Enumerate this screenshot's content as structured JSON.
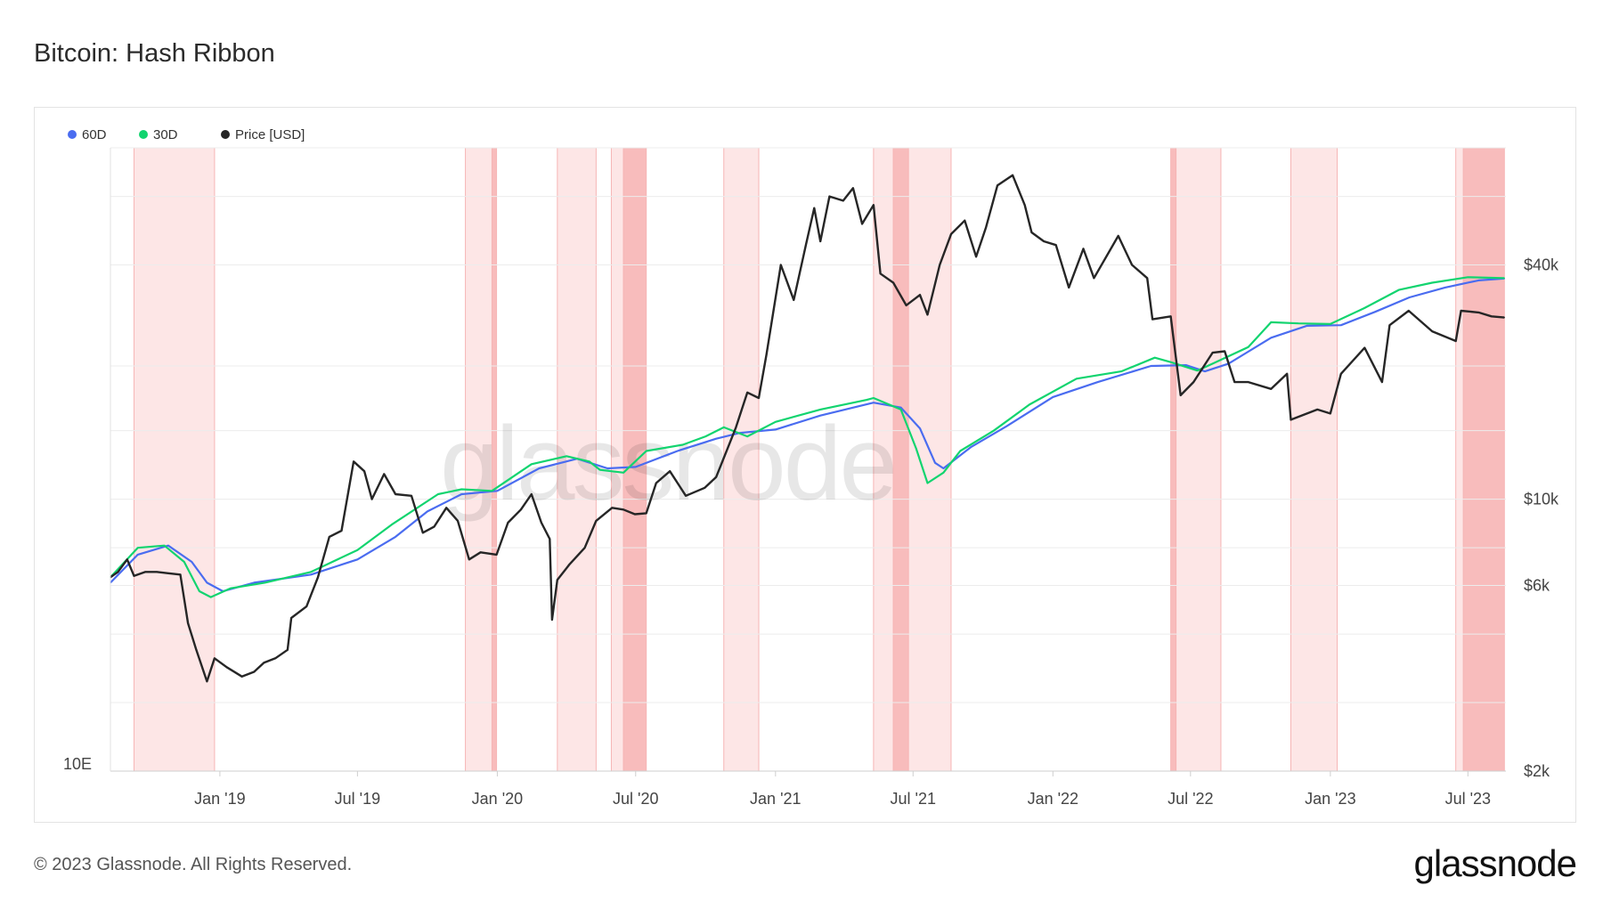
{
  "title": "Bitcoin: Hash Ribbon",
  "footer": "© 2023 Glassnode. All Rights Reserved.",
  "brand": "glassnode",
  "watermark": "glassnode",
  "colors": {
    "ma60": "#4a6cf0",
    "ma30": "#12d46f",
    "price": "#262626",
    "band_light": "#fde6e6",
    "band_dark": "#f8bcbc",
    "band_edge": "#f6b5b5",
    "grid": "#ececec"
  },
  "chart_data": {
    "type": "line",
    "title": "Bitcoin: Hash Ribbon",
    "legend": [
      {
        "name": "60D",
        "color": "#4a6cf0"
      },
      {
        "name": "30D",
        "color": "#12d46f"
      },
      {
        "name": "Price [USD]",
        "color": "#262626"
      }
    ],
    "legend_position": "top-left",
    "x_ticks": [
      "Jan '19",
      "Jul '19",
      "Jan '20",
      "Jul '20",
      "Jan '21",
      "Jul '21",
      "Jan '22",
      "Jul '22",
      "Jan '23",
      "Jul '23"
    ],
    "x_tick_dates": [
      "2019-01-01",
      "2019-07-01",
      "2020-01-01",
      "2020-07-01",
      "2021-01-01",
      "2021-07-01",
      "2022-01-01",
      "2022-07-01",
      "2023-01-01",
      "2023-07-01"
    ],
    "x_range": [
      "2018-08-10",
      "2023-08-20"
    ],
    "y_left": {
      "scale": "log",
      "tick_labels": [
        "10E"
      ],
      "tick_values": [
        10
      ]
    },
    "y_right": {
      "scale": "log",
      "range": [
        2000,
        80000
      ],
      "ticks": [
        2000,
        6000,
        10000,
        40000
      ],
      "tick_labels": [
        "$2k",
        "$6k",
        "$10k",
        "$40k"
      ]
    },
    "capitulation_bands": [
      {
        "start": "2018-09-10",
        "end": "2018-12-25",
        "intensity": "light"
      },
      {
        "start": "2019-11-20",
        "end": "2019-12-25",
        "intensity": "light"
      },
      {
        "start": "2019-12-25",
        "end": "2019-12-31",
        "intensity": "dark"
      },
      {
        "start": "2020-03-20",
        "end": "2020-05-10",
        "intensity": "light"
      },
      {
        "start": "2020-05-30",
        "end": "2020-06-15",
        "intensity": "light"
      },
      {
        "start": "2020-06-15",
        "end": "2020-07-15",
        "intensity": "dark"
      },
      {
        "start": "2020-10-25",
        "end": "2020-12-10",
        "intensity": "light"
      },
      {
        "start": "2021-05-10",
        "end": "2021-06-05",
        "intensity": "light"
      },
      {
        "start": "2021-06-05",
        "end": "2021-06-25",
        "intensity": "dark"
      },
      {
        "start": "2021-06-25",
        "end": "2021-08-20",
        "intensity": "light"
      },
      {
        "start": "2022-06-05",
        "end": "2022-06-12",
        "intensity": "dark"
      },
      {
        "start": "2022-06-12",
        "end": "2022-08-10",
        "intensity": "light"
      },
      {
        "start": "2022-11-10",
        "end": "2023-01-10",
        "intensity": "light"
      },
      {
        "start": "2023-06-15",
        "end": "2023-06-25",
        "intensity": "light"
      },
      {
        "start": "2023-06-25",
        "end": "2023-08-18",
        "intensity": "dark"
      }
    ],
    "series": [
      {
        "name": "Price [USD]",
        "axis": "right",
        "points": [
          [
            "2018-08-10",
            6300
          ],
          [
            "2018-08-20",
            6500
          ],
          [
            "2018-09-01",
            7000
          ],
          [
            "2018-09-10",
            6350
          ],
          [
            "2018-09-25",
            6500
          ],
          [
            "2018-10-10",
            6500
          ],
          [
            "2018-10-25",
            6450
          ],
          [
            "2018-11-10",
            6400
          ],
          [
            "2018-11-20",
            4800
          ],
          [
            "2018-12-01",
            4100
          ],
          [
            "2018-12-15",
            3400
          ],
          [
            "2018-12-25",
            3900
          ],
          [
            "2019-01-10",
            3700
          ],
          [
            "2019-01-30",
            3500
          ],
          [
            "2019-02-15",
            3600
          ],
          [
            "2019-02-28",
            3800
          ],
          [
            "2019-03-15",
            3900
          ],
          [
            "2019-03-31",
            4100
          ],
          [
            "2019-04-05",
            4950
          ],
          [
            "2019-04-25",
            5300
          ],
          [
            "2019-05-10",
            6300
          ],
          [
            "2019-05-25",
            8000
          ],
          [
            "2019-06-10",
            8300
          ],
          [
            "2019-06-26",
            12500
          ],
          [
            "2019-07-10",
            11800
          ],
          [
            "2019-07-20",
            10000
          ],
          [
            "2019-08-05",
            11600
          ],
          [
            "2019-08-20",
            10300
          ],
          [
            "2019-09-10",
            10200
          ],
          [
            "2019-09-25",
            8200
          ],
          [
            "2019-10-10",
            8500
          ],
          [
            "2019-10-26",
            9500
          ],
          [
            "2019-11-10",
            8800
          ],
          [
            "2019-11-25",
            7000
          ],
          [
            "2019-12-10",
            7300
          ],
          [
            "2019-12-31",
            7200
          ],
          [
            "2020-01-15",
            8700
          ],
          [
            "2020-02-01",
            9400
          ],
          [
            "2020-02-15",
            10300
          ],
          [
            "2020-02-28",
            8700
          ],
          [
            "2020-03-10",
            7900
          ],
          [
            "2020-03-13",
            4900
          ],
          [
            "2020-03-20",
            6200
          ],
          [
            "2020-04-05",
            6800
          ],
          [
            "2020-04-25",
            7500
          ],
          [
            "2020-05-10",
            8800
          ],
          [
            "2020-05-31",
            9500
          ],
          [
            "2020-06-15",
            9400
          ],
          [
            "2020-06-30",
            9150
          ],
          [
            "2020-07-15",
            9200
          ],
          [
            "2020-07-28",
            11000
          ],
          [
            "2020-08-15",
            11800
          ],
          [
            "2020-09-05",
            10200
          ],
          [
            "2020-09-30",
            10700
          ],
          [
            "2020-10-15",
            11400
          ],
          [
            "2020-10-28",
            13200
          ],
          [
            "2020-11-10",
            15300
          ],
          [
            "2020-11-25",
            18800
          ],
          [
            "2020-12-10",
            18200
          ],
          [
            "2020-12-20",
            23500
          ],
          [
            "2021-01-08",
            40000
          ],
          [
            "2021-01-25",
            32500
          ],
          [
            "2021-02-10",
            45000
          ],
          [
            "2021-02-21",
            56000
          ],
          [
            "2021-03-01",
            46000
          ],
          [
            "2021-03-13",
            60000
          ],
          [
            "2021-03-31",
            58500
          ],
          [
            "2021-04-13",
            63000
          ],
          [
            "2021-04-25",
            51000
          ],
          [
            "2021-05-10",
            57000
          ],
          [
            "2021-05-19",
            38000
          ],
          [
            "2021-06-05",
            36000
          ],
          [
            "2021-06-22",
            31500
          ],
          [
            "2021-07-10",
            33500
          ],
          [
            "2021-07-20",
            29800
          ],
          [
            "2021-08-05",
            40000
          ],
          [
            "2021-08-20",
            48000
          ],
          [
            "2021-09-07",
            52000
          ],
          [
            "2021-09-22",
            42000
          ],
          [
            "2021-10-05",
            50000
          ],
          [
            "2021-10-20",
            64000
          ],
          [
            "2021-11-09",
            68000
          ],
          [
            "2021-11-25",
            57000
          ],
          [
            "2021-12-04",
            48500
          ],
          [
            "2021-12-20",
            46000
          ],
          [
            "2022-01-05",
            45000
          ],
          [
            "2022-01-22",
            35000
          ],
          [
            "2022-02-10",
            44000
          ],
          [
            "2022-02-24",
            37000
          ],
          [
            "2022-03-28",
            47500
          ],
          [
            "2022-04-15",
            40000
          ],
          [
            "2022-05-05",
            37000
          ],
          [
            "2022-05-12",
            29000
          ],
          [
            "2022-06-05",
            29500
          ],
          [
            "2022-06-18",
            18500
          ],
          [
            "2022-07-05",
            20000
          ],
          [
            "2022-07-30",
            23800
          ],
          [
            "2022-08-15",
            24000
          ],
          [
            "2022-08-28",
            20000
          ],
          [
            "2022-09-15",
            20000
          ],
          [
            "2022-10-15",
            19200
          ],
          [
            "2022-11-05",
            21000
          ],
          [
            "2022-11-10",
            16000
          ],
          [
            "2022-12-15",
            17000
          ],
          [
            "2023-01-01",
            16600
          ],
          [
            "2023-01-15",
            21000
          ],
          [
            "2023-02-15",
            24500
          ],
          [
            "2023-03-10",
            20000
          ],
          [
            "2023-03-20",
            28000
          ],
          [
            "2023-04-14",
            30500
          ],
          [
            "2023-05-15",
            27000
          ],
          [
            "2023-06-15",
            25500
          ],
          [
            "2023-06-22",
            30500
          ],
          [
            "2023-07-15",
            30200
          ],
          [
            "2023-08-01",
            29500
          ],
          [
            "2023-08-18",
            29300
          ]
        ]
      },
      {
        "name": "30D",
        "axis": "left",
        "points": [
          [
            "2018-08-10",
            6300
          ],
          [
            "2018-09-15",
            7500
          ],
          [
            "2018-10-20",
            7600
          ],
          [
            "2018-11-15",
            6900
          ],
          [
            "2018-12-05",
            5800
          ],
          [
            "2018-12-20",
            5600
          ],
          [
            "2019-01-15",
            5900
          ],
          [
            "2019-03-01",
            6100
          ],
          [
            "2019-05-01",
            6500
          ],
          [
            "2019-07-01",
            7400
          ],
          [
            "2019-08-15",
            8600
          ],
          [
            "2019-10-15",
            10300
          ],
          [
            "2019-11-15",
            10600
          ],
          [
            "2019-12-25",
            10500
          ],
          [
            "2020-02-15",
            12300
          ],
          [
            "2020-04-01",
            12900
          ],
          [
            "2020-05-01",
            12500
          ],
          [
            "2020-05-15",
            11900
          ],
          [
            "2020-06-15",
            11700
          ],
          [
            "2020-07-15",
            13300
          ],
          [
            "2020-09-01",
            13800
          ],
          [
            "2020-10-01",
            14500
          ],
          [
            "2020-10-25",
            15300
          ],
          [
            "2020-11-25",
            14500
          ],
          [
            "2021-01-01",
            15800
          ],
          [
            "2021-03-01",
            17000
          ],
          [
            "2021-05-01",
            18000
          ],
          [
            "2021-05-10",
            18200
          ],
          [
            "2021-06-15",
            17000
          ],
          [
            "2021-07-05",
            13500
          ],
          [
            "2021-07-20",
            11000
          ],
          [
            "2021-08-10",
            11700
          ],
          [
            "2021-09-01",
            13300
          ],
          [
            "2021-10-15",
            15000
          ],
          [
            "2021-12-01",
            17500
          ],
          [
            "2022-02-01",
            20400
          ],
          [
            "2022-04-01",
            21300
          ],
          [
            "2022-05-15",
            23100
          ],
          [
            "2022-06-05",
            22500
          ],
          [
            "2022-07-10",
            21400
          ],
          [
            "2022-08-01",
            22400
          ],
          [
            "2022-09-15",
            24600
          ],
          [
            "2022-10-15",
            28500
          ],
          [
            "2022-11-20",
            28300
          ],
          [
            "2023-01-01",
            28200
          ],
          [
            "2023-02-15",
            31000
          ],
          [
            "2023-04-01",
            34500
          ],
          [
            "2023-05-15",
            36000
          ],
          [
            "2023-07-01",
            37200
          ],
          [
            "2023-08-18",
            37000
          ]
        ]
      },
      {
        "name": "60D",
        "axis": "left",
        "points": [
          [
            "2018-08-10",
            6100
          ],
          [
            "2018-09-15",
            7200
          ],
          [
            "2018-10-25",
            7600
          ],
          [
            "2018-11-25",
            6900
          ],
          [
            "2018-12-15",
            6100
          ],
          [
            "2019-01-05",
            5800
          ],
          [
            "2019-02-15",
            6100
          ],
          [
            "2019-05-01",
            6400
          ],
          [
            "2019-07-01",
            7000
          ],
          [
            "2019-08-20",
            8000
          ],
          [
            "2019-10-01",
            9300
          ],
          [
            "2019-11-15",
            10300
          ],
          [
            "2020-01-01",
            10500
          ],
          [
            "2020-02-25",
            12000
          ],
          [
            "2020-04-15",
            12700
          ],
          [
            "2020-05-25",
            12000
          ],
          [
            "2020-07-01",
            12100
          ],
          [
            "2020-08-25",
            13300
          ],
          [
            "2020-10-15",
            14300
          ],
          [
            "2020-11-15",
            14800
          ],
          [
            "2021-01-01",
            15100
          ],
          [
            "2021-03-01",
            16400
          ],
          [
            "2021-05-10",
            17700
          ],
          [
            "2021-06-15",
            17200
          ],
          [
            "2021-07-10",
            15200
          ],
          [
            "2021-07-30",
            12400
          ],
          [
            "2021-08-10",
            12000
          ],
          [
            "2021-09-15",
            13600
          ],
          [
            "2021-11-01",
            15400
          ],
          [
            "2022-01-01",
            18300
          ],
          [
            "2022-03-01",
            20000
          ],
          [
            "2022-05-10",
            22000
          ],
          [
            "2022-06-25",
            22100
          ],
          [
            "2022-07-20",
            21300
          ],
          [
            "2022-08-20",
            22300
          ],
          [
            "2022-10-15",
            26000
          ],
          [
            "2022-12-01",
            27900
          ],
          [
            "2023-01-15",
            28000
          ],
          [
            "2023-03-01",
            30300
          ],
          [
            "2023-04-15",
            33000
          ],
          [
            "2023-06-01",
            35000
          ],
          [
            "2023-07-15",
            36500
          ],
          [
            "2023-08-18",
            36900
          ]
        ]
      }
    ]
  }
}
